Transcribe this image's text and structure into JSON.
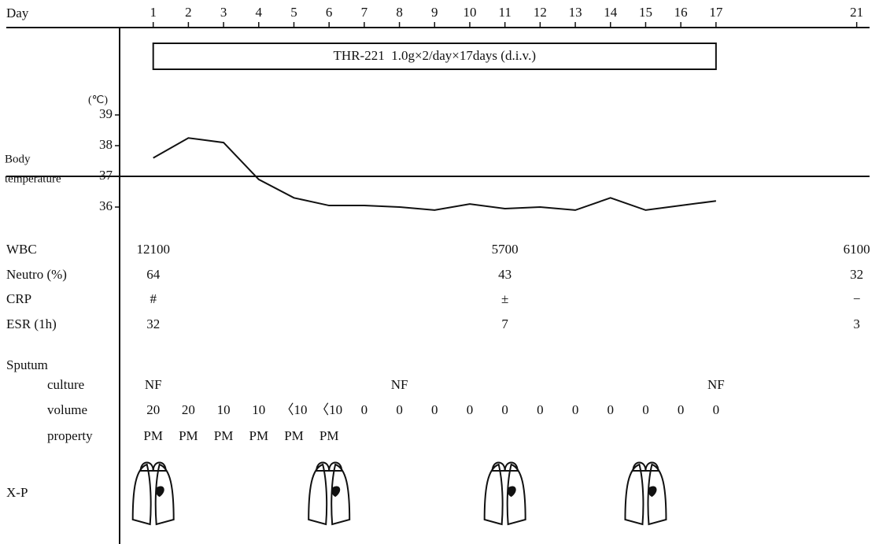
{
  "chart_data": {
    "type": "line",
    "xlabel": "Day",
    "x": [
      1,
      2,
      3,
      4,
      5,
      6,
      7,
      8,
      9,
      10,
      11,
      12,
      13,
      14,
      15,
      16,
      17
    ],
    "values": [
      37.6,
      38.25,
      38.1,
      36.9,
      36.3,
      36.05,
      36.05,
      36.0,
      35.9,
      36.1,
      35.95,
      36.0,
      35.9,
      36.3,
      35.9,
      36.05,
      36.2
    ],
    "color": "#111111",
    "xlim": [
      0,
      21.5
    ],
    "xticks": [
      1,
      2,
      3,
      4,
      5,
      6,
      7,
      8,
      9,
      10,
      11,
      12,
      13,
      14,
      15,
      16,
      17,
      21
    ],
    "ylim": [
      35.5,
      39.5
    ],
    "yticks": [
      36,
      37,
      38,
      39
    ],
    "yunit": "(℃)",
    "ylabel_lines": [
      "Body",
      "temperature"
    ],
    "hline": 37
  },
  "treatment": {
    "text": "THR-221  1.0g×2/day×17days (d.i.v.)",
    "start_day": 1,
    "end_day": 17
  },
  "labs": {
    "days": [
      1,
      11,
      21
    ],
    "rows": [
      {
        "label": "WBC",
        "values": [
          12100,
          5700,
          6100
        ]
      },
      {
        "label": "Neutro (%)",
        "values": [
          64,
          43,
          32
        ]
      },
      {
        "label": "CRP",
        "values": [
          "#",
          "±",
          "−"
        ]
      },
      {
        "label": "ESR (1h)",
        "values": [
          32,
          7,
          3
        ]
      }
    ]
  },
  "sputum": {
    "label": "Sputum",
    "rows": [
      {
        "label": "culture",
        "days": [
          1,
          8,
          17
        ],
        "values": [
          "NF",
          "NF",
          "NF"
        ]
      },
      {
        "label": "volume",
        "days": [
          1,
          2,
          3,
          4,
          5,
          6,
          7,
          8,
          9,
          10,
          11,
          12,
          13,
          14,
          15,
          16,
          17
        ],
        "values": [
          20,
          20,
          10,
          10,
          "〈10",
          "〈10",
          0,
          0,
          0,
          0,
          0,
          0,
          0,
          0,
          0,
          0,
          0
        ]
      },
      {
        "label": "property",
        "days": [
          1,
          2,
          3,
          4,
          5,
          6
        ],
        "values": [
          "PM",
          "PM",
          "PM",
          "PM",
          "PM",
          "PM"
        ]
      }
    ]
  },
  "xp": {
    "label": "X-P",
    "days": [
      1,
      6,
      11,
      15
    ]
  }
}
